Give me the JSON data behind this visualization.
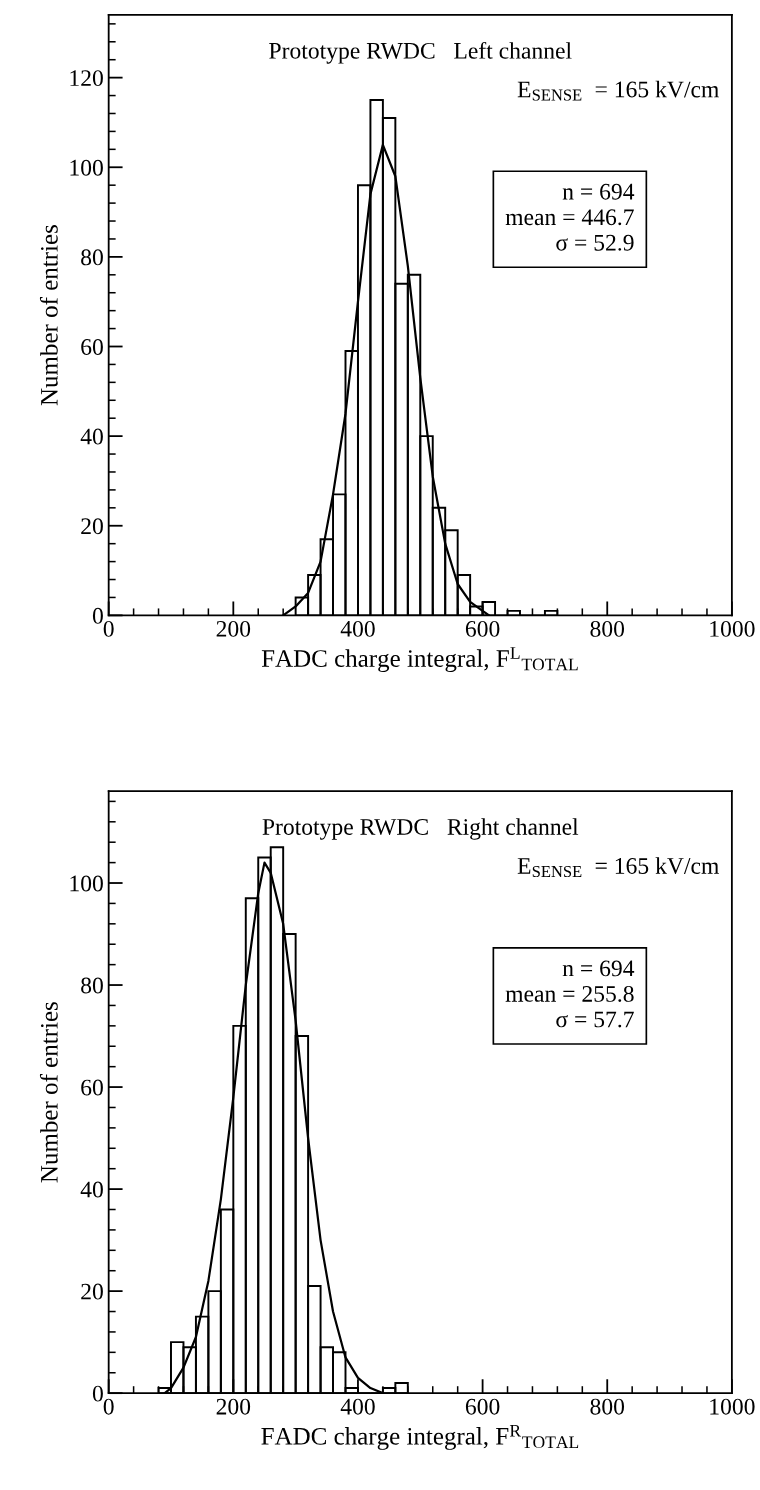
{
  "chart_data": [
    {
      "type": "histogram",
      "xlabel": "FADC charge integral, F$^{L}$$_{TOTAL}$",
      "ylabel": "Number of entries",
      "annotations": [
        "Prototype RWDC   Left channel",
        "E$_{SENSE}$  = 165 kV/cm",
        "n = 694\nmean = 446.7\nσ = 52.9"
      ],
      "bins": [
        300,
        320,
        340,
        360,
        380,
        400,
        420,
        440,
        460,
        480,
        500,
        520,
        540,
        560,
        580,
        600,
        620,
        640,
        660,
        700,
        720
      ],
      "values": [
        4,
        9,
        17,
        27,
        59,
        96,
        115,
        111,
        74,
        76,
        40,
        24,
        19,
        9,
        2,
        3,
        0,
        1,
        0,
        1
      ],
      "series": [
        {
          "type": "line",
          "color": "#000000",
          "x": [
            280,
            300,
            320,
            340,
            360,
            380,
            400,
            420,
            440,
            460,
            480,
            500,
            520,
            540,
            560,
            580,
            600,
            610
          ],
          "values": [
            0,
            2,
            5,
            12,
            27,
            45,
            70,
            94,
            105,
            98,
            78,
            53,
            31,
            16,
            7,
            3,
            1,
            0
          ]
        }
      ],
      "color": "#000000",
      "xlim": [
        0,
        1000
      ],
      "ylim": [
        0,
        134
      ],
      "xticks": [
        0,
        {
          "value": 40,
          "label": null
        },
        {
          "value": 80,
          "label": null
        },
        {
          "value": 120,
          "label": null
        },
        {
          "value": 160,
          "label": null
        },
        200,
        {
          "value": 240,
          "label": null
        },
        {
          "value": 280,
          "label": null
        },
        {
          "value": 320,
          "label": null
        },
        {
          "value": 360,
          "label": null
        },
        400,
        {
          "value": 440,
          "label": null
        },
        {
          "value": 480,
          "label": null
        },
        {
          "value": 520,
          "label": null
        },
        {
          "value": 560,
          "label": null
        },
        600,
        {
          "value": 640,
          "label": null
        },
        {
          "value": 680,
          "label": null
        },
        {
          "value": 720,
          "label": null
        },
        {
          "value": 760,
          "label": null
        },
        800,
        {
          "value": 840,
          "label": null
        },
        {
          "value": 880,
          "label": null
        },
        {
          "value": 920,
          "label": null
        },
        {
          "value": 960,
          "label": null
        },
        1000
      ],
      "yticks": [
        0,
        {
          "value": 4,
          "label": null
        },
        {
          "value": 8,
          "label": null
        },
        {
          "value": 12,
          "label": null
        },
        {
          "value": 16,
          "label": null
        },
        20,
        {
          "value": 24,
          "label": null
        },
        {
          "value": 28,
          "label": null
        },
        {
          "value": 32,
          "label": null
        },
        {
          "value": 36,
          "label": null
        },
        40,
        {
          "value": 44,
          "label": null
        },
        {
          "value": 48,
          "label": null
        },
        {
          "value": 52,
          "label": null
        },
        {
          "value": 56,
          "label": null
        },
        60,
        {
          "value": 64,
          "label": null
        },
        {
          "value": 68,
          "label": null
        },
        {
          "value": 72,
          "label": null
        },
        {
          "value": 76,
          "label": null
        },
        80,
        {
          "value": 84,
          "label": null
        },
        {
          "value": 88,
          "label": null
        },
        {
          "value": 92,
          "label": null
        },
        {
          "value": 96,
          "label": null
        },
        100,
        {
          "value": 104,
          "label": null
        },
        {
          "value": 108,
          "label": null
        },
        {
          "value": 112,
          "label": null
        },
        {
          "value": 116,
          "label": null
        },
        120,
        {
          "value": 124,
          "label": null
        },
        {
          "value": 128,
          "label": null
        },
        {
          "value": 132,
          "label": null
        }
      ]
    },
    {
      "type": "histogram",
      "xlabel": "FADC charge integral, F$^{R}$$_{TOTAL}$",
      "ylabel": "Number of entries",
      "annotations": [
        "Prototype RWDC   Right channel",
        "E$_{SENSE}$  = 165 kV/cm",
        "n = 694\nmean = 255.8\nσ = 57.7"
      ],
      "bins": [
        80,
        100,
        120,
        140,
        160,
        180,
        200,
        220,
        240,
        260,
        280,
        300,
        320,
        340,
        360,
        380,
        400,
        420,
        440,
        460,
        480
      ],
      "values": [
        1,
        10,
        9,
        15,
        20,
        36,
        72,
        97,
        105,
        107,
        90,
        70,
        21,
        9,
        8,
        1,
        0,
        0,
        1,
        2
      ],
      "series": [
        {
          "type": "line",
          "color": "#000000",
          "x": [
            90,
            100,
            120,
            140,
            160,
            180,
            200,
            220,
            240,
            250,
            260,
            280,
            300,
            320,
            340,
            360,
            380,
            400,
            420,
            440
          ],
          "values": [
            0,
            1,
            5,
            11,
            22,
            38,
            58,
            80,
            98,
            104,
            102,
            92,
            73,
            50,
            30,
            16,
            7,
            3,
            1,
            0
          ]
        }
      ],
      "color": "#000000",
      "xlim": [
        0,
        1000
      ],
      "ylim": [
        0,
        118
      ],
      "xticks": [
        0,
        {
          "value": 40,
          "label": null
        },
        {
          "value": 80,
          "label": null
        },
        {
          "value": 120,
          "label": null
        },
        {
          "value": 160,
          "label": null
        },
        200,
        {
          "value": 240,
          "label": null
        },
        {
          "value": 280,
          "label": null
        },
        {
          "value": 320,
          "label": null
        },
        {
          "value": 360,
          "label": null
        },
        400,
        {
          "value": 440,
          "label": null
        },
        {
          "value": 480,
          "label": null
        },
        {
          "value": 520,
          "label": null
        },
        {
          "value": 560,
          "label": null
        },
        600,
        {
          "value": 640,
          "label": null
        },
        {
          "value": 680,
          "label": null
        },
        {
          "value": 720,
          "label": null
        },
        {
          "value": 760,
          "label": null
        },
        800,
        {
          "value": 840,
          "label": null
        },
        {
          "value": 880,
          "label": null
        },
        {
          "value": 920,
          "label": null
        },
        {
          "value": 960,
          "label": null
        },
        1000
      ],
      "yticks": [
        0,
        {
          "value": 4,
          "label": null
        },
        {
          "value": 8,
          "label": null
        },
        {
          "value": 12,
          "label": null
        },
        {
          "value": 16,
          "label": null
        },
        20,
        {
          "value": 24,
          "label": null
        },
        {
          "value": 28,
          "label": null
        },
        {
          "value": 32,
          "label": null
        },
        {
          "value": 36,
          "label": null
        },
        40,
        {
          "value": 44,
          "label": null
        },
        {
          "value": 48,
          "label": null
        },
        {
          "value": 52,
          "label": null
        },
        {
          "value": 56,
          "label": null
        },
        60,
        {
          "value": 64,
          "label": null
        },
        {
          "value": 68,
          "label": null
        },
        {
          "value": 72,
          "label": null
        },
        {
          "value": 76,
          "label": null
        },
        80,
        {
          "value": 84,
          "label": null
        },
        {
          "value": 88,
          "label": null
        },
        {
          "value": 92,
          "label": null
        },
        {
          "value": 96,
          "label": null
        },
        100,
        {
          "value": 104,
          "label": null
        },
        {
          "value": 108,
          "label": null
        },
        {
          "value": 112,
          "label": null
        },
        {
          "value": 116,
          "label": null
        }
      ]
    }
  ]
}
